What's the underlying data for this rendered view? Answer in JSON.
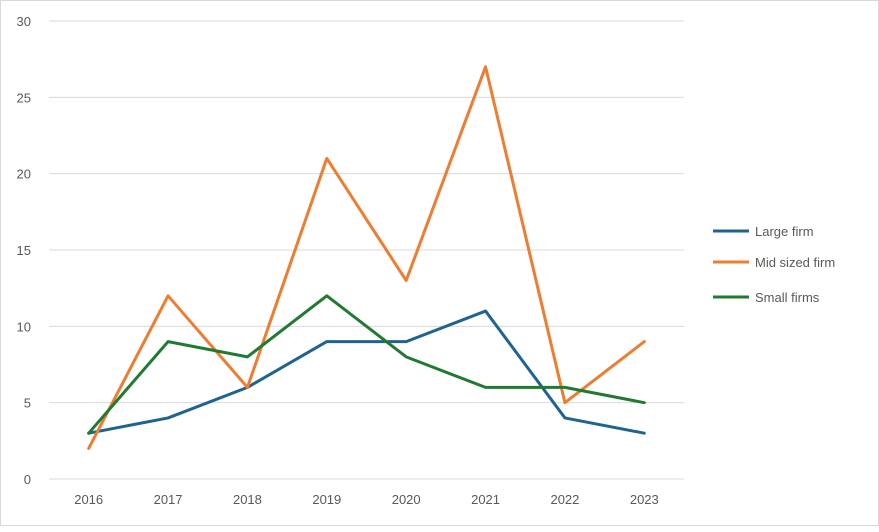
{
  "chart_data": {
    "type": "line",
    "title": "",
    "xlabel": "",
    "ylabel": "",
    "categories": [
      "2016",
      "2017",
      "2018",
      "2019",
      "2020",
      "2021",
      "2022",
      "2023"
    ],
    "ylim": [
      0,
      30
    ],
    "yticks": [
      0,
      5,
      10,
      15,
      20,
      25,
      30
    ],
    "grid": true,
    "legend_position": "right",
    "series": [
      {
        "name": "Large firm",
        "color": "#1F6391",
        "values": [
          3,
          4,
          6,
          9,
          9,
          11,
          4,
          3
        ]
      },
      {
        "name": "Mid sized firm",
        "color": "#ED7D31",
        "values": [
          2,
          12,
          6,
          21,
          13,
          27,
          5,
          9
        ]
      },
      {
        "name": "Small firms",
        "color": "#217A32",
        "values": [
          3,
          9,
          8,
          12,
          8,
          6,
          6,
          5
        ]
      }
    ]
  }
}
